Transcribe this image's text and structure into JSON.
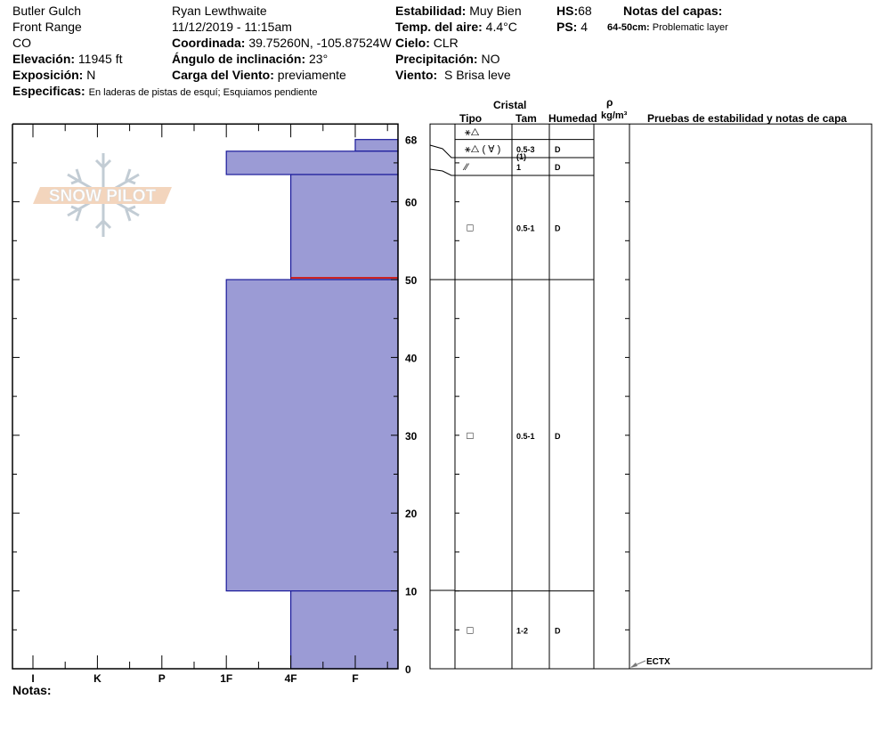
{
  "header": {
    "location": "Butler Gulch",
    "range": "Front Range",
    "state": "CO",
    "elevation_label": "Elevación:",
    "elevation": "11945 ft",
    "aspect_label": "Exposición:",
    "aspect": "N",
    "specifics_label": "Especificas:",
    "specifics": "En laderas de pistas de esquí; Esquiamos pendiente",
    "observer": "Ryan Lewthwaite",
    "datetime": "11/12/2019 - 11:15am",
    "coord_label": "Coordinada:",
    "coord": "39.75260N, -105.87524W",
    "slope_label": "Ángulo de inclinación:",
    "slope": "23°",
    "windload_label": "Carga del Viento:",
    "windload": "previamente",
    "stability_label": "Estabilidad:",
    "stability": "Muy Bien",
    "airtemp_label": "Temp. del aire:",
    "airtemp": "4.4°C",
    "sky_label": "Cielo:",
    "sky": "CLR",
    "precip_label": "Precipitación:",
    "precip": "NO",
    "wind_label": "Viento:",
    "wind": "S Brisa leve",
    "hs_label": "HS:",
    "hs": "68",
    "ps_label": "PS:",
    "ps": "4",
    "layer_notes_label": "Notas del capas:",
    "layer_note_range": "64-50cm:",
    "layer_note": "Problematic layer",
    "notes_label": "Notas:"
  },
  "logo_text": "SNOW PILOT",
  "table_headers": {
    "cristal": "Cristal",
    "tipo": "Tipo",
    "tam": "Tam",
    "humedad": "Humedad",
    "rho": "ρ",
    "density": "kg/m³",
    "tests": "Pruebas de estabilidad y notas de capa"
  },
  "colors": {
    "layer_fill": "#9b9bd5",
    "layer_stroke": "#1a1a9a",
    "problem_line": "#cc2222"
  },
  "chart_data": {
    "type": "hardness-profile",
    "ylabel": "",
    "ylim": [
      0,
      70
    ],
    "y_ticks": [
      "0",
      "10",
      "20",
      "30",
      "40",
      "50",
      "60",
      "68"
    ],
    "x_ticks": [
      "I",
      "K",
      "P",
      "1F",
      "4F",
      "F"
    ],
    "layers": [
      {
        "top": 68,
        "bottom": 66.5,
        "hardness": "F"
      },
      {
        "top": 66.5,
        "bottom": 63.5,
        "hardness": "1F"
      },
      {
        "top": 63.5,
        "bottom": 50,
        "hardness": "4F"
      },
      {
        "top": 50,
        "bottom": 10,
        "hardness": "1F"
      },
      {
        "top": 10,
        "bottom": 0,
        "hardness": "4F"
      }
    ],
    "problem_depth": 50,
    "grain_rows": [
      {
        "top": 70,
        "bottom": 68,
        "type": "⚹△",
        "size": "",
        "moisture": ""
      },
      {
        "top": 68,
        "bottom": 65.8,
        "type": "⚹△ ( ∀ )",
        "size": "0.5-3",
        "size2": "(1)",
        "moisture": "D"
      },
      {
        "top": 65.8,
        "bottom": 63.5,
        "type": "⁄⁄",
        "size": "1",
        "moisture": "D"
      },
      {
        "top": 63.5,
        "bottom": 50,
        "type": "□",
        "size": "0.5-1",
        "moisture": "D"
      },
      {
        "top": 50,
        "bottom": 10,
        "type": "□",
        "size": "0.5-1",
        "moisture": "D"
      },
      {
        "top": 10,
        "bottom": 0,
        "type": "□",
        "size": "1-2",
        "moisture": "D"
      }
    ],
    "tests": [
      {
        "depth": 0,
        "label": "ECTX"
      }
    ]
  }
}
